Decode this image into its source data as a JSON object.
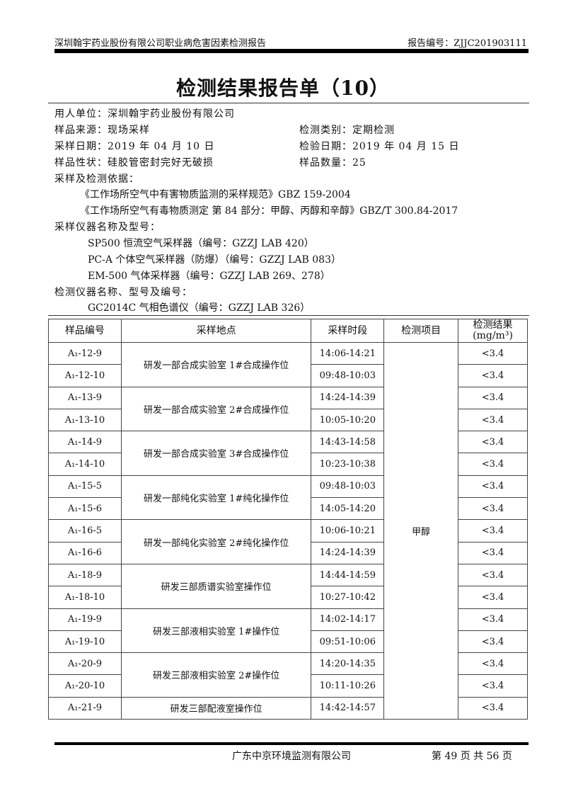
{
  "header": {
    "left": "深圳翰宇药业股份有限公司职业病危害因素检测报告",
    "right": "报告编号：ZJJC201903111"
  },
  "title": "检测结果报告单（10）",
  "info": {
    "client": "用人单位：深圳翰宇药业股份有限公司",
    "source": "样品来源：现场采样",
    "type": "检测类别：定期检测",
    "sample_date": "采样日期：2019 年 04 月 10 日",
    "test_date": "检验日期：2019 年 04 月 15 日",
    "condition": "样品性状：硅胶管密封完好无破损",
    "count": "样品数量：25",
    "basis_label": "采样及检测依据：",
    "basis": [
      "《工作场所空气中有害物质监测的采样规范》GBZ 159-2004",
      "《工作场所空气有毒物质测定 第 84 部分：甲醇、丙醇和辛醇》GBZ/T 300.84-2017"
    ],
    "samplers_label": "采样仪器名称及型号：",
    "samplers": [
      "SP500 恒流空气采样器（编号：GZZJ LAB 420）",
      "PC-A 个体空气采样器（防爆）（编号：GZZJ LAB 083）",
      "EM-500 气体采样器（编号：GZZJ LAB 269、278）"
    ],
    "analyzer_label": "检测仪器名称、型号及编号：",
    "analyzer": "GC2014C 气相色谱仪（编号：GZZJ LAB 326）"
  },
  "table": {
    "headers": [
      "样品编号",
      "采样地点",
      "采样时段",
      "检测项目",
      "检测结果",
      "(mg/m³)"
    ],
    "item": "甲醇",
    "groups": [
      {
        "location": "研发一部合成实验室 1#合成操作位",
        "rows": [
          [
            "A₁-12-9",
            "14:06-14:21",
            "<3.4"
          ],
          [
            "A₁-12-10",
            "09:48-10:03",
            "<3.4"
          ]
        ]
      },
      {
        "location": "研发一部合成实验室 2#合成操作位",
        "rows": [
          [
            "A₁-13-9",
            "14:24-14:39",
            "<3.4"
          ],
          [
            "A₁-13-10",
            "10:05-10:20",
            "<3.4"
          ]
        ]
      },
      {
        "location": "研发一部合成实验室 3#合成操作位",
        "rows": [
          [
            "A₁-14-9",
            "14:43-14:58",
            "<3.4"
          ],
          [
            "A₁-14-10",
            "10:23-10:38",
            "<3.4"
          ]
        ]
      },
      {
        "location": "研发一部纯化实验室 1#纯化操作位",
        "rows": [
          [
            "A₁-15-5",
            "09:48-10:03",
            "<3.4"
          ],
          [
            "A₁-15-6",
            "14:05-14:20",
            "<3.4"
          ]
        ]
      },
      {
        "location": "研发一部纯化实验室 2#纯化操作位",
        "rows": [
          [
            "A₁-16-5",
            "10:06-10:21",
            "<3.4"
          ],
          [
            "A₁-16-6",
            "14:24-14:39",
            "<3.4"
          ]
        ]
      },
      {
        "location": "研发三部质谱实验室操作位",
        "rows": [
          [
            "A₁-18-9",
            "14:44-14:59",
            "<3.4"
          ],
          [
            "A₁-18-10",
            "10:27-10:42",
            "<3.4"
          ]
        ]
      },
      {
        "location": "研发三部液相实验室 1#操作位",
        "rows": [
          [
            "A₁-19-9",
            "14:02-14:17",
            "<3.4"
          ],
          [
            "A₁-19-10",
            "09:51-10:06",
            "<3.4"
          ]
        ]
      },
      {
        "location": "研发三部液相实验室 2#操作位",
        "rows": [
          [
            "A₁-20-9",
            "14:20-14:35",
            "<3.4"
          ],
          [
            "A₁-20-10",
            "10:11-10:26",
            "<3.4"
          ]
        ]
      },
      {
        "location": "研发三部配液室操作位",
        "rows": [
          [
            "A₁-21-9",
            "14:42-14:57",
            "<3.4"
          ]
        ]
      }
    ]
  },
  "footer": {
    "company": "广东中京环境监测有限公司",
    "page": "第 49 页 共 56 页"
  }
}
